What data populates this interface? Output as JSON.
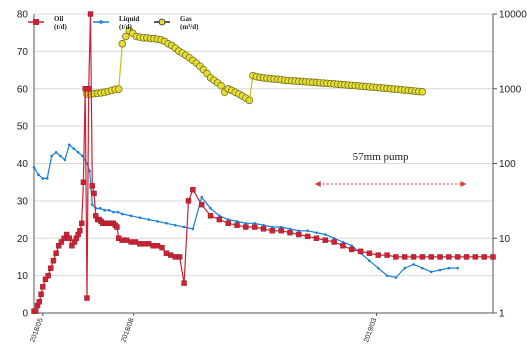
{
  "chart_data": {
    "type": "line",
    "title": "",
    "xlabel": "",
    "ylabel": "",
    "ylim": [
      0,
      80
    ],
    "y_ticks": [
      "0",
      "10",
      "20",
      "30",
      "40",
      "50",
      "60",
      "70",
      "80"
    ],
    "y2_scale": "log",
    "y2lim": [
      1,
      10000
    ],
    "y2_ticks": [
      "1",
      "10",
      "100",
      "1000",
      "10000"
    ],
    "x_ticks": [
      "2018/05",
      "2018/08",
      "2019/03"
    ],
    "grid": "horizontal",
    "legend_position": "top-left",
    "legend": [
      {
        "name": "Oil",
        "unit": "(t/d)",
        "color": "#cc2233",
        "marker": "square"
      },
      {
        "name": "Liquid",
        "unit": "(t/d)",
        "color": "#1a7fd6",
        "marker": "dot"
      },
      {
        "name": "Gas",
        "unit": "(m³/d)",
        "color": "#c9c21a",
        "marker": "circle"
      }
    ],
    "annotation": {
      "text": "57mm pump",
      "range_x": [
        318,
        490
      ],
      "y": 34.5
    },
    "series": [
      {
        "name": "Oil",
        "axis": "left",
        "x": [
          0,
          2,
          4,
          6,
          8,
          10,
          13,
          16,
          19,
          22,
          25,
          28,
          31,
          34,
          37,
          40,
          43,
          46,
          48,
          50,
          52,
          54,
          56,
          58,
          60,
          62,
          64,
          66,
          68,
          70,
          72,
          74,
          76,
          78,
          80,
          82,
          84,
          86,
          88,
          90,
          92,
          94,
          96,
          100,
          105,
          110,
          115,
          120,
          125,
          130,
          135,
          140,
          145,
          150,
          155,
          160,
          165,
          170,
          175,
          180,
          190,
          200,
          210,
          220,
          230,
          240,
          250,
          260,
          270,
          280,
          290,
          300,
          310,
          320,
          330,
          340,
          350,
          360,
          370,
          380,
          390,
          400,
          410,
          420,
          430,
          440,
          450,
          460,
          470,
          480,
          490,
          500,
          510,
          520
        ],
        "y": [
          0.5,
          0.5,
          2,
          3,
          5,
          7,
          9,
          10,
          12,
          14,
          16,
          18,
          19,
          20,
          21,
          20,
          18,
          19,
          20,
          21,
          22,
          24,
          35,
          60,
          4,
          60,
          80,
          34,
          32,
          26,
          25,
          25,
          24.5,
          24,
          24,
          24,
          24,
          24,
          24,
          24,
          23.5,
          23,
          20,
          19.5,
          19.5,
          19,
          19,
          18.5,
          18.5,
          18.5,
          18,
          18,
          17.5,
          16,
          15.5,
          15,
          15,
          8,
          30,
          33,
          29,
          26,
          25,
          24,
          23.5,
          23,
          23,
          22.5,
          22,
          22,
          21.5,
          21,
          20.5,
          20,
          19.5,
          19,
          18,
          17,
          16.5,
          16,
          15.5,
          15.5,
          15,
          15,
          15,
          15,
          15,
          15,
          15,
          15,
          15,
          15,
          15,
          15
        ]
      },
      {
        "name": "Liquid",
        "axis": "left",
        "x": [
          0,
          5,
          10,
          15,
          20,
          25,
          30,
          35,
          40,
          45,
          50,
          55,
          60,
          63,
          66,
          70,
          75,
          80,
          85,
          90,
          95,
          100,
          110,
          120,
          130,
          140,
          150,
          160,
          170,
          180,
          190,
          200,
          210,
          220,
          230,
          240,
          250,
          260,
          270,
          280,
          290,
          300,
          310,
          320,
          330,
          340,
          350,
          360,
          370,
          380,
          390,
          400,
          410,
          420,
          430,
          440,
          450,
          460,
          470,
          480
        ],
        "y": [
          39,
          37,
          36,
          36,
          42,
          43,
          42,
          41,
          45,
          44,
          43,
          42,
          40,
          38,
          29,
          28,
          28,
          27.5,
          27.5,
          27,
          27,
          26.5,
          26,
          25.5,
          25,
          24.5,
          24,
          23.5,
          23,
          22.5,
          31,
          28,
          26,
          25,
          24.5,
          24,
          24,
          23.5,
          23,
          23,
          22.5,
          22,
          22,
          21.5,
          21,
          20,
          19,
          18,
          16,
          14,
          12,
          10,
          9.5,
          12,
          13,
          12,
          11,
          11.5,
          12,
          12
        ]
      },
      {
        "name": "Gas",
        "axis": "right",
        "x": [
          60,
          64,
          68,
          72,
          76,
          80,
          84,
          88,
          92,
          96,
          100,
          104,
          108,
          112,
          116,
          120,
          124,
          128,
          132,
          136,
          140,
          144,
          148,
          152,
          156,
          160,
          164,
          168,
          172,
          176,
          180,
          184,
          188,
          192,
          196,
          200,
          204,
          208,
          212,
          216,
          220,
          224,
          228,
          232,
          236,
          240,
          244,
          248,
          252,
          256,
          260,
          264,
          268,
          272,
          276,
          280,
          284,
          288,
          292,
          296,
          300,
          304,
          308,
          312,
          316,
          320,
          324,
          328,
          332,
          336,
          340,
          344,
          348,
          352,
          356,
          360,
          364,
          368,
          372,
          376,
          380,
          384,
          388,
          392,
          396,
          400,
          404,
          408,
          412,
          416,
          420,
          424,
          428,
          432,
          436,
          440
        ],
        "y": [
          850,
          850,
          860,
          870,
          880,
          900,
          920,
          950,
          980,
          990,
          4000,
          5000,
          6000,
          5500,
          5000,
          4900,
          4800,
          4800,
          4700,
          4700,
          4600,
          4500,
          4300,
          4000,
          3800,
          3500,
          3200,
          3000,
          2800,
          2600,
          2400,
          2200,
          2000,
          1800,
          1600,
          1400,
          1300,
          1200,
          1100,
          900,
          1000,
          950,
          900,
          850,
          800,
          750,
          700,
          1500,
          1450,
          1420,
          1400,
          1380,
          1360,
          1350,
          1340,
          1320,
          1300,
          1290,
          1280,
          1270,
          1260,
          1250,
          1240,
          1230,
          1220,
          1210,
          1200,
          1190,
          1180,
          1170,
          1160,
          1150,
          1140,
          1130,
          1120,
          1110,
          1100,
          1090,
          1080,
          1070,
          1060,
          1050,
          1040,
          1030,
          1020,
          1010,
          1000,
          990,
          980,
          970,
          960,
          950,
          940,
          930,
          920,
          910
        ]
      }
    ]
  },
  "labels": {
    "annotation": "57mm pump"
  }
}
